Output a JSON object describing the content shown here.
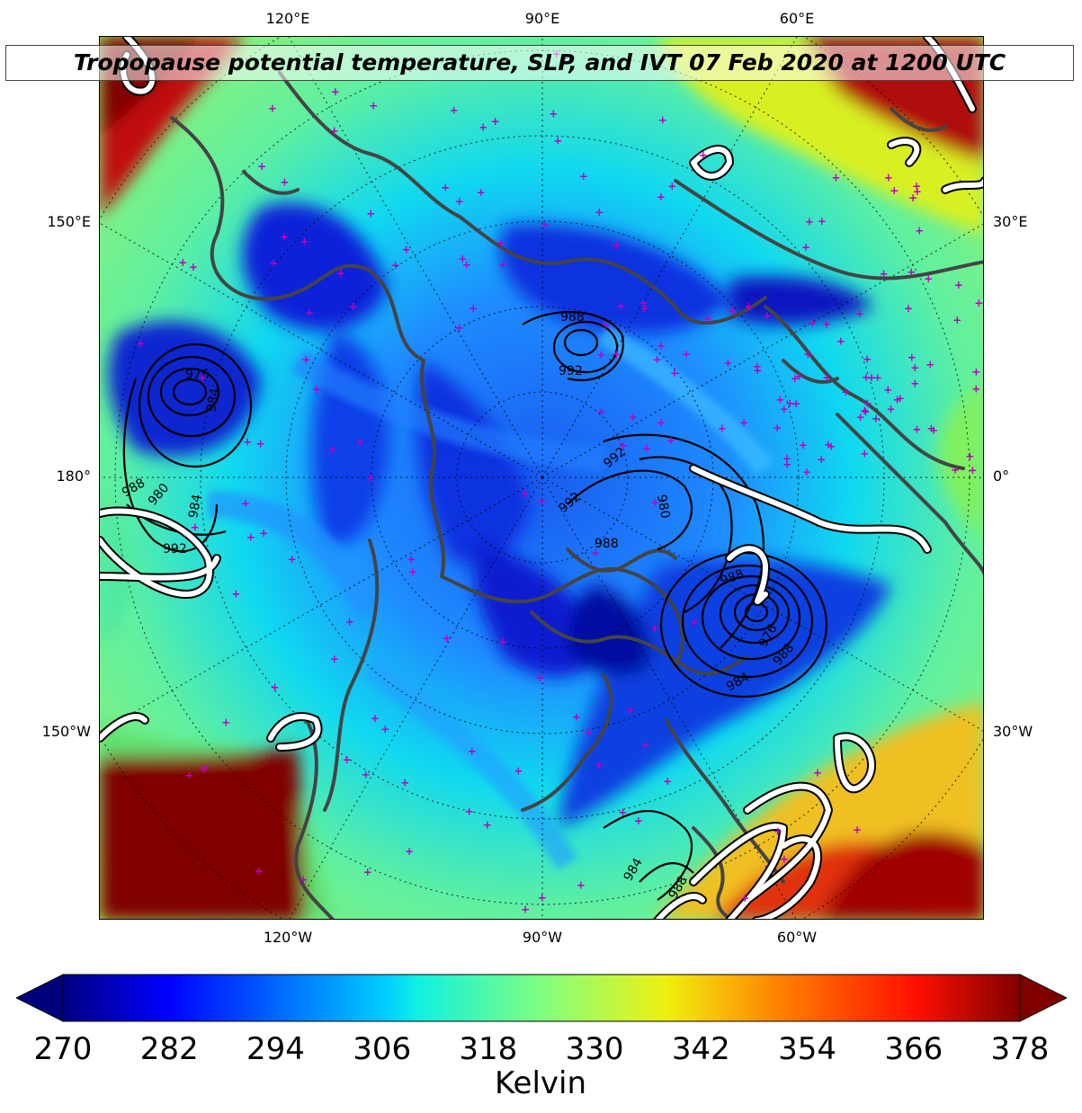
{
  "title": "Tropopause potential temperature, SLP, and IVT 07 Feb 2020 at 1200 UTC",
  "map": {
    "projection": "north-polar-stereographic",
    "fill_variable": "tropopause potential temperature",
    "contour_black": "sea level pressure",
    "contour_white": "integrated vapor transport",
    "top_lon_labels": [
      "120°E",
      "90°E",
      "60°E"
    ],
    "bottom_lon_labels": [
      "120°W",
      "90°W",
      "60°W"
    ],
    "left_labels": [
      "150°E",
      "180°",
      "150°W"
    ],
    "right_labels": [
      "30°E",
      "0°",
      "30°W"
    ],
    "slp_labels": [
      "976",
      "984",
      "988",
      "980",
      "984",
      "992",
      "988",
      "992",
      "992",
      "988",
      "992",
      "980",
      "988",
      "976",
      "984",
      "988",
      "984",
      "988"
    ]
  },
  "colorbar": {
    "colormap": "jet",
    "min": 270,
    "max": 378,
    "extend": "both",
    "ticks": [
      "270",
      "282",
      "294",
      "306",
      "318",
      "330",
      "342",
      "354",
      "366",
      "378"
    ],
    "label": "Kelvin"
  },
  "colors": {
    "frame": "#000000",
    "coastline": "#444444",
    "slp_contour": "#000000",
    "ivt_contour": "#ffffff",
    "station_marker": "#c000c0"
  }
}
